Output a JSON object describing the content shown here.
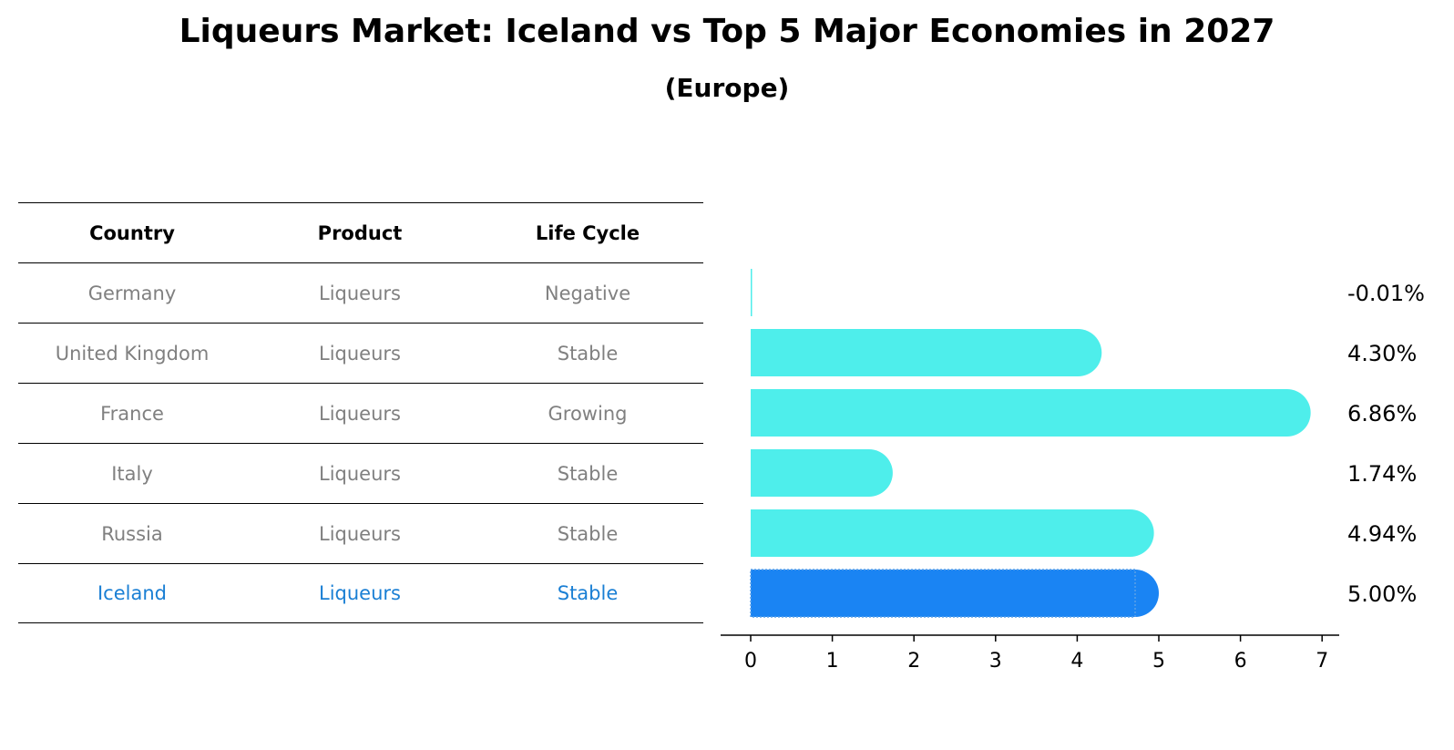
{
  "chart_data": {
    "type": "bar",
    "orientation": "horizontal",
    "title": "Liqueurs Market: Iceland vs Top 5 Major Economies in 2027",
    "subtitle": "(Europe)",
    "categories": [
      "Germany",
      "United Kingdom",
      "France",
      "Italy",
      "Russia",
      "Iceland"
    ],
    "values": [
      -0.01,
      4.3,
      6.86,
      1.74,
      4.94,
      5.0
    ],
    "value_labels": [
      "-0.01%",
      "4.30%",
      "6.86%",
      "1.74%",
      "4.94%",
      "5.00%"
    ],
    "highlight": "Iceland",
    "xlim": [
      -0.35,
      7.2
    ],
    "xticks": [
      "0",
      "1",
      "2",
      "3",
      "4",
      "5",
      "6",
      "7"
    ],
    "colors": {
      "default": "#4EEEEB",
      "highlight": "#1A84F3"
    },
    "table": {
      "headers": [
        "Country",
        "Product",
        "Life Cycle"
      ],
      "rows": [
        [
          "Germany",
          "Liqueurs",
          "Negative"
        ],
        [
          "United Kingdom",
          "Liqueurs",
          "Stable"
        ],
        [
          "France",
          "Liqueurs",
          "Growing"
        ],
        [
          "Italy",
          "Liqueurs",
          "Stable"
        ],
        [
          "Russia",
          "Liqueurs",
          "Stable"
        ],
        [
          "Iceland",
          "Liqueurs",
          "Stable"
        ]
      ]
    }
  }
}
